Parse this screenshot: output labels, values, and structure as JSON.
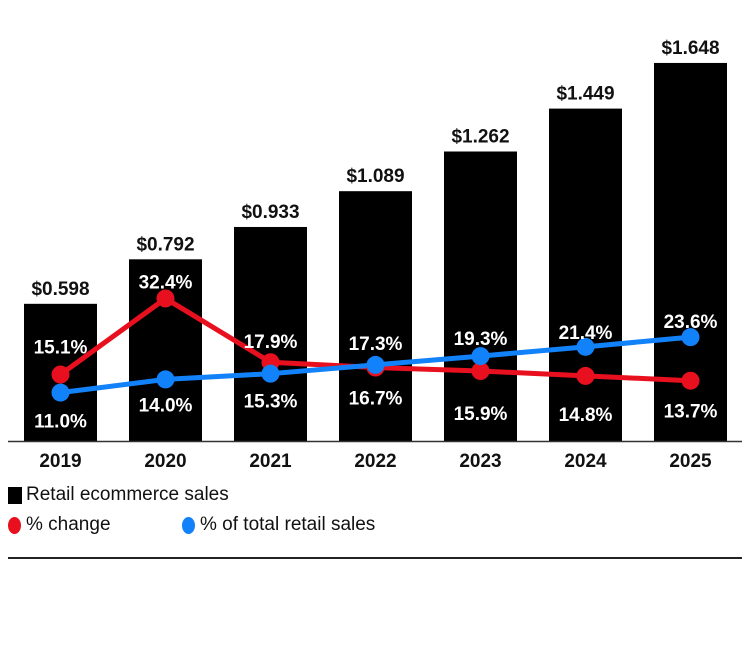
{
  "chart_data": {
    "type": "bar",
    "categories": [
      "2019",
      "2020",
      "2021",
      "2022",
      "2023",
      "2024",
      "2025"
    ],
    "series": [
      {
        "name": "Retail ecommerce sales",
        "type": "bar",
        "values": [
          0.598,
          0.792,
          0.933,
          1.089,
          1.262,
          1.449,
          1.648
        ],
        "labels": [
          "$0.598",
          "$0.792",
          "$0.933",
          "$1.089",
          "$1.262",
          "$1.449",
          "$1.648"
        ],
        "color": "#000000"
      },
      {
        "name": "% change",
        "type": "line",
        "values": [
          15.1,
          32.4,
          17.9,
          16.7,
          15.9,
          14.8,
          13.7
        ],
        "labels": [
          "15.1%",
          "32.4%",
          "17.9%",
          "16.7%",
          "15.9%",
          "14.8%",
          "13.7%"
        ],
        "color": "#e8101e"
      },
      {
        "name": "% of total retail sales",
        "type": "line",
        "values": [
          11.0,
          14.0,
          15.3,
          17.3,
          19.3,
          21.4,
          23.6
        ],
        "labels": [
          "11.0%",
          "14.0%",
          "15.3%",
          "17.3%",
          "19.3%",
          "21.4%",
          "23.6%"
        ],
        "color": "#1282fa"
      }
    ],
    "grid": false,
    "legend": "bottom-left"
  }
}
